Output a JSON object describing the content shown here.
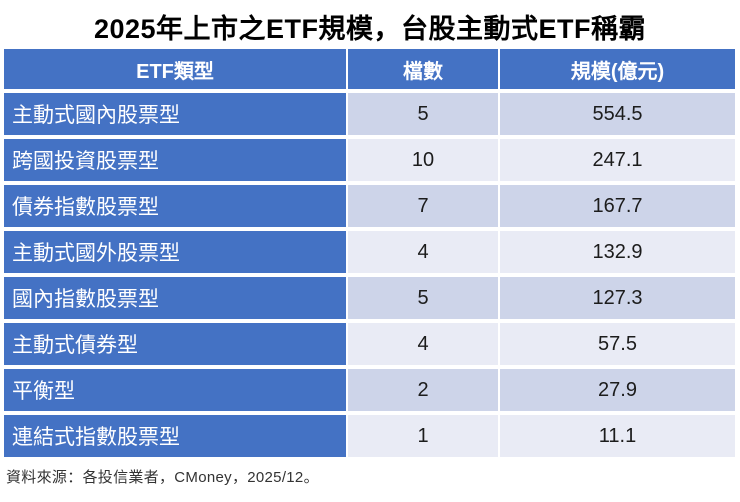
{
  "title": "2025年上市之ETF規模，台股主動式ETF稱霸",
  "table": {
    "columns": [
      "ETF類型",
      "檔數",
      "規模(億元)"
    ],
    "rows": [
      {
        "type": "主動式國內股票型",
        "count": "5",
        "size": "554.5"
      },
      {
        "type": "跨國投資股票型",
        "count": "10",
        "size": "247.1"
      },
      {
        "type": "債券指數股票型",
        "count": "7",
        "size": "167.7"
      },
      {
        "type": "主動式國外股票型",
        "count": "4",
        "size": "132.9"
      },
      {
        "type": "國內指數股票型",
        "count": "5",
        "size": "127.3"
      },
      {
        "type": "主動式債券型",
        "count": "4",
        "size": "57.5"
      },
      {
        "type": "平衡型",
        "count": "2",
        "size": "27.9"
      },
      {
        "type": "連結式指數股票型",
        "count": "1",
        "size": "11.1"
      }
    ]
  },
  "footer": "資料來源：各投信業者，CMoney，2025/12。",
  "colors": {
    "header_blue": "#4472C4",
    "row_label_blue": "#4472C4",
    "row_shade_dark": "#CDD4E9",
    "row_shade_light": "#E9EBF5",
    "header_text": "#FFFFFF",
    "number_text": "#1C1C1C",
    "title_text": "#000000",
    "footer_text": "#333333"
  },
  "chart_data": {
    "type": "table",
    "title": "2025年上市之ETF規模，台股主動式ETF稱霸",
    "columns": [
      "ETF類型",
      "檔數",
      "規模(億元)"
    ],
    "rows": [
      [
        "主動式國內股票型",
        5,
        554.5
      ],
      [
        "跨國投資股票型",
        10,
        247.1
      ],
      [
        "債券指數股票型",
        7,
        167.7
      ],
      [
        "主動式國外股票型",
        4,
        132.9
      ],
      [
        "國內指數股票型",
        5,
        127.3
      ],
      [
        "主動式債券型",
        4,
        57.5
      ],
      [
        "平衡型",
        2,
        27.9
      ],
      [
        "連結式指數股票型",
        1,
        11.1
      ]
    ],
    "source_note": "資料來源：各投信業者，CMoney，2025/12。"
  }
}
